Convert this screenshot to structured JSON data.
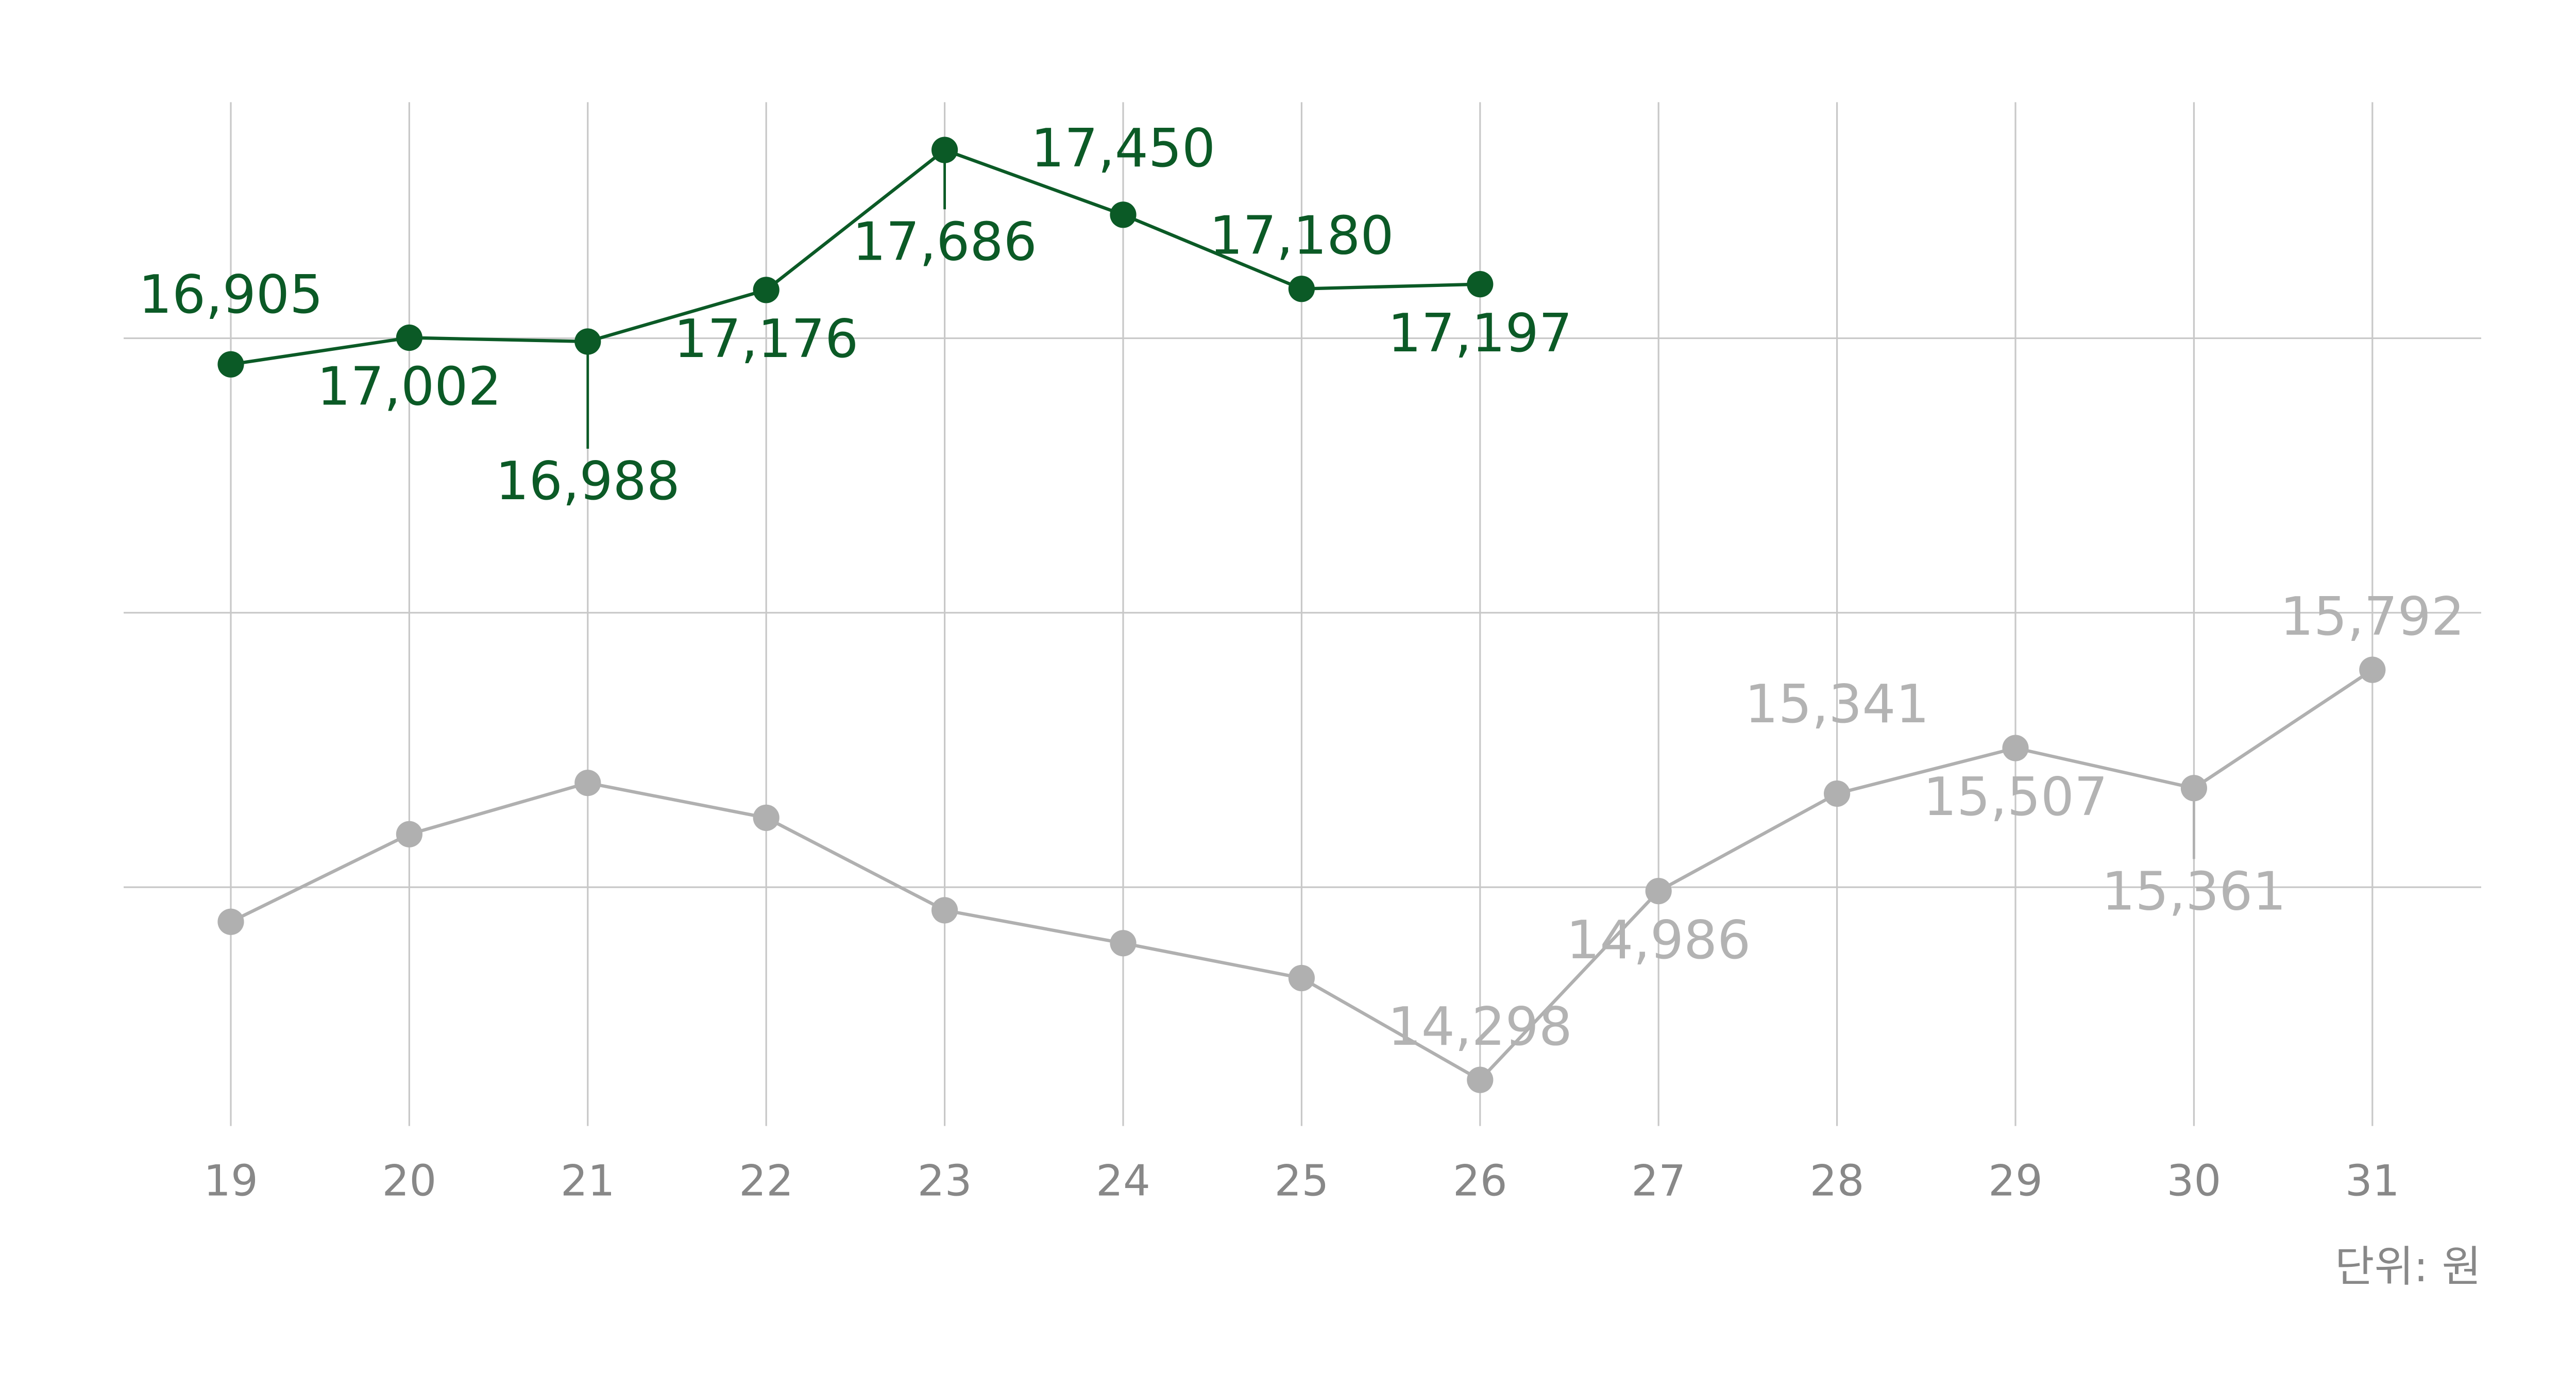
{
  "chart_data": {
    "type": "line",
    "categories": [
      "19",
      "20",
      "21",
      "22",
      "23",
      "24",
      "25",
      "26",
      "27",
      "28",
      "29",
      "30",
      "31"
    ],
    "series": [
      {
        "color": "#0b5a26",
        "label_color": "#0b5a26",
        "values": [
          16905,
          17002,
          16988,
          17176,
          17686,
          17450,
          17180,
          17197,
          null,
          null,
          null,
          null,
          null
        ],
        "value_labels": [
          "16,905",
          "17,002",
          "16,988",
          "17,176",
          "17,686",
          "17,450",
          "17,180",
          "17,197",
          null,
          null,
          null,
          null,
          null
        ]
      },
      {
        "color": "#b0b0b0",
        "label_color": "#b3b3b3",
        "values": [
          14874,
          15193,
          15380,
          15253,
          14916,
          14796,
          14669,
          14298,
          14986,
          15341,
          15507,
          15361,
          15792
        ],
        "value_labels": [
          null,
          null,
          null,
          null,
          null,
          null,
          null,
          "14,298",
          "14,986",
          "15,341",
          "15,507",
          "15,361",
          "15,792"
        ]
      }
    ],
    "ylim": [
      14130,
      17860
    ],
    "yticks": [
      15000,
      16000,
      17000
    ],
    "grid": true,
    "annotation": "단위: 원"
  }
}
